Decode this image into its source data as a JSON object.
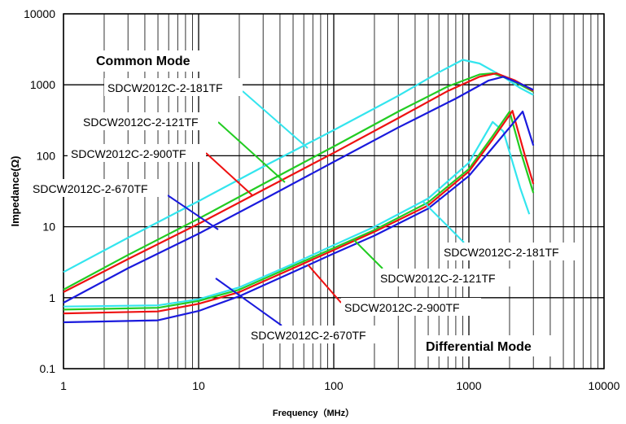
{
  "chart_data": {
    "type": "line",
    "title": "",
    "xlabel": "Frequency（MHz）",
    "ylabel": "Impedance(Ω)",
    "xscale": "log",
    "yscale": "log",
    "xlim": [
      1,
      10000
    ],
    "ylim": [
      0.1,
      10000
    ],
    "x_ticks": [
      1,
      10,
      100,
      1000,
      10000
    ],
    "x_tick_labels": [
      "1",
      "10",
      "100",
      "1000",
      "10000"
    ],
    "y_ticks": [
      0.1,
      1,
      10,
      100,
      1000,
      10000
    ],
    "y_tick_labels": [
      "0.1",
      "1",
      "10",
      "100",
      "1000",
      "10000"
    ],
    "grid": true,
    "legend": "none",
    "annotations": {
      "common_mode": "Common Mode",
      "differential_mode": "Differential Mode"
    },
    "series": [
      {
        "name": "SDCW2012C-2-181TF",
        "group": "common",
        "color": "#33e5ee",
        "points": [
          [
            1,
            2.3
          ],
          [
            3,
            7
          ],
          [
            10,
            23
          ],
          [
            30,
            70
          ],
          [
            100,
            230
          ],
          [
            300,
            700
          ],
          [
            600,
            1500
          ],
          [
            900,
            2250
          ],
          [
            1200,
            2000
          ],
          [
            1800,
            1300
          ],
          [
            2400,
            900
          ],
          [
            3000,
            720
          ]
        ]
      },
      {
        "name": "SDCW2012C-2-121TF",
        "group": "common",
        "color": "#22cc22",
        "points": [
          [
            1,
            1.3
          ],
          [
            3,
            4
          ],
          [
            10,
            13
          ],
          [
            30,
            40
          ],
          [
            100,
            135
          ],
          [
            300,
            420
          ],
          [
            700,
            950
          ],
          [
            1200,
            1400
          ],
          [
            1500,
            1450
          ],
          [
            2000,
            1200
          ],
          [
            3000,
            800
          ]
        ]
      },
      {
        "name": "SDCW2012C-2-900TF",
        "group": "common",
        "color": "#ee1111",
        "points": [
          [
            1,
            1.2
          ],
          [
            3,
            3.5
          ],
          [
            10,
            11
          ],
          [
            30,
            33
          ],
          [
            100,
            110
          ],
          [
            300,
            340
          ],
          [
            700,
            820
          ],
          [
            1200,
            1300
          ],
          [
            1600,
            1450
          ],
          [
            2200,
            1150
          ],
          [
            3000,
            820
          ]
        ]
      },
      {
        "name": "SDCW2012C-2-670TF",
        "group": "common",
        "color": "#1a1add",
        "points": [
          [
            1,
            0.85
          ],
          [
            3,
            2.6
          ],
          [
            10,
            8
          ],
          [
            30,
            24
          ],
          [
            100,
            82
          ],
          [
            300,
            250
          ],
          [
            800,
            640
          ],
          [
            1400,
            1150
          ],
          [
            1800,
            1300
          ],
          [
            2500,
            1000
          ],
          [
            3000,
            850
          ]
        ]
      },
      {
        "name": "SDCW2012C-2-181TF",
        "group": "differential",
        "color": "#33e5ee",
        "points": [
          [
            1,
            0.75
          ],
          [
            5,
            0.78
          ],
          [
            10,
            0.95
          ],
          [
            20,
            1.4
          ],
          [
            50,
            3
          ],
          [
            100,
            5.5
          ],
          [
            200,
            10
          ],
          [
            500,
            25
          ],
          [
            1000,
            80
          ],
          [
            1500,
            300
          ],
          [
            1800,
            220
          ],
          [
            2400,
            35
          ],
          [
            2800,
            15
          ]
        ]
      },
      {
        "name": "SDCW2012C-2-121TF",
        "group": "differential",
        "color": "#22cc22",
        "points": [
          [
            1,
            0.68
          ],
          [
            5,
            0.72
          ],
          [
            10,
            0.9
          ],
          [
            20,
            1.3
          ],
          [
            50,
            2.8
          ],
          [
            100,
            5
          ],
          [
            200,
            9
          ],
          [
            500,
            22
          ],
          [
            1000,
            65
          ],
          [
            1500,
            190
          ],
          [
            2000,
            420
          ],
          [
            2400,
            120
          ],
          [
            3000,
            30
          ]
        ]
      },
      {
        "name": "SDCW2012C-2-900TF",
        "group": "differential",
        "color": "#ee1111",
        "points": [
          [
            1,
            0.6
          ],
          [
            5,
            0.64
          ],
          [
            10,
            0.82
          ],
          [
            20,
            1.2
          ],
          [
            50,
            2.6
          ],
          [
            100,
            4.7
          ],
          [
            200,
            8.5
          ],
          [
            500,
            20
          ],
          [
            1000,
            60
          ],
          [
            1500,
            170
          ],
          [
            2100,
            430
          ],
          [
            2600,
            100
          ],
          [
            3000,
            40
          ]
        ]
      },
      {
        "name": "SDCW2012C-2-670TF",
        "group": "differential",
        "color": "#1a1add",
        "points": [
          [
            1,
            0.45
          ],
          [
            5,
            0.48
          ],
          [
            10,
            0.65
          ],
          [
            20,
            1.05
          ],
          [
            50,
            2.3
          ],
          [
            100,
            4.2
          ],
          [
            200,
            7.5
          ],
          [
            500,
            18
          ],
          [
            1000,
            52
          ],
          [
            1500,
            130
          ],
          [
            2000,
            250
          ],
          [
            2500,
            420
          ],
          [
            3000,
            140
          ]
        ]
      }
    ]
  }
}
